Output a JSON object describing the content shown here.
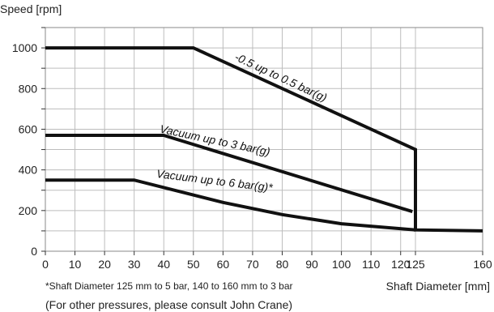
{
  "chart_data": {
    "type": "line",
    "ylabel": "Speed [rpm]",
    "xlabel": "Shaft Diameter [mm]",
    "ylim": [
      0,
      1100
    ],
    "x_ticks": [
      0,
      10,
      20,
      30,
      40,
      50,
      60,
      70,
      80,
      90,
      100,
      110,
      120,
      125,
      160
    ],
    "x_tick_labels": [
      "0",
      "10",
      "20",
      "30",
      "40",
      "50",
      "60",
      "70",
      "80",
      "90",
      "100",
      "110",
      "120",
      "125",
      "160"
    ],
    "y_ticks": [
      0,
      200,
      400,
      600,
      800,
      1000
    ],
    "y_tick_labels": [
      "0",
      "200",
      "400",
      "600",
      "800",
      "1000"
    ],
    "grid": true,
    "series": [
      {
        "name": "-0.5 up to 0.5 bar(g)",
        "points": [
          [
            0,
            1000
          ],
          [
            50,
            1000
          ],
          [
            125,
            500
          ],
          [
            125,
            105
          ],
          [
            160,
            100
          ]
        ]
      },
      {
        "name": "Vacuum up to 3 bar(g)",
        "points": [
          [
            0,
            570
          ],
          [
            40,
            570
          ],
          [
            124,
            195
          ]
        ]
      },
      {
        "name": "Vacuum up to 6 bar(g)*",
        "points": [
          [
            0,
            350
          ],
          [
            30,
            350
          ],
          [
            60,
            240
          ],
          [
            80,
            180
          ],
          [
            100,
            135
          ],
          [
            125,
            105
          ]
        ]
      }
    ],
    "footnote": "*Shaft Diameter 125 mm to 5 bar, 140 to 160 mm to 3 bar",
    "note": "(For other pressures, please consult John Crane)"
  }
}
